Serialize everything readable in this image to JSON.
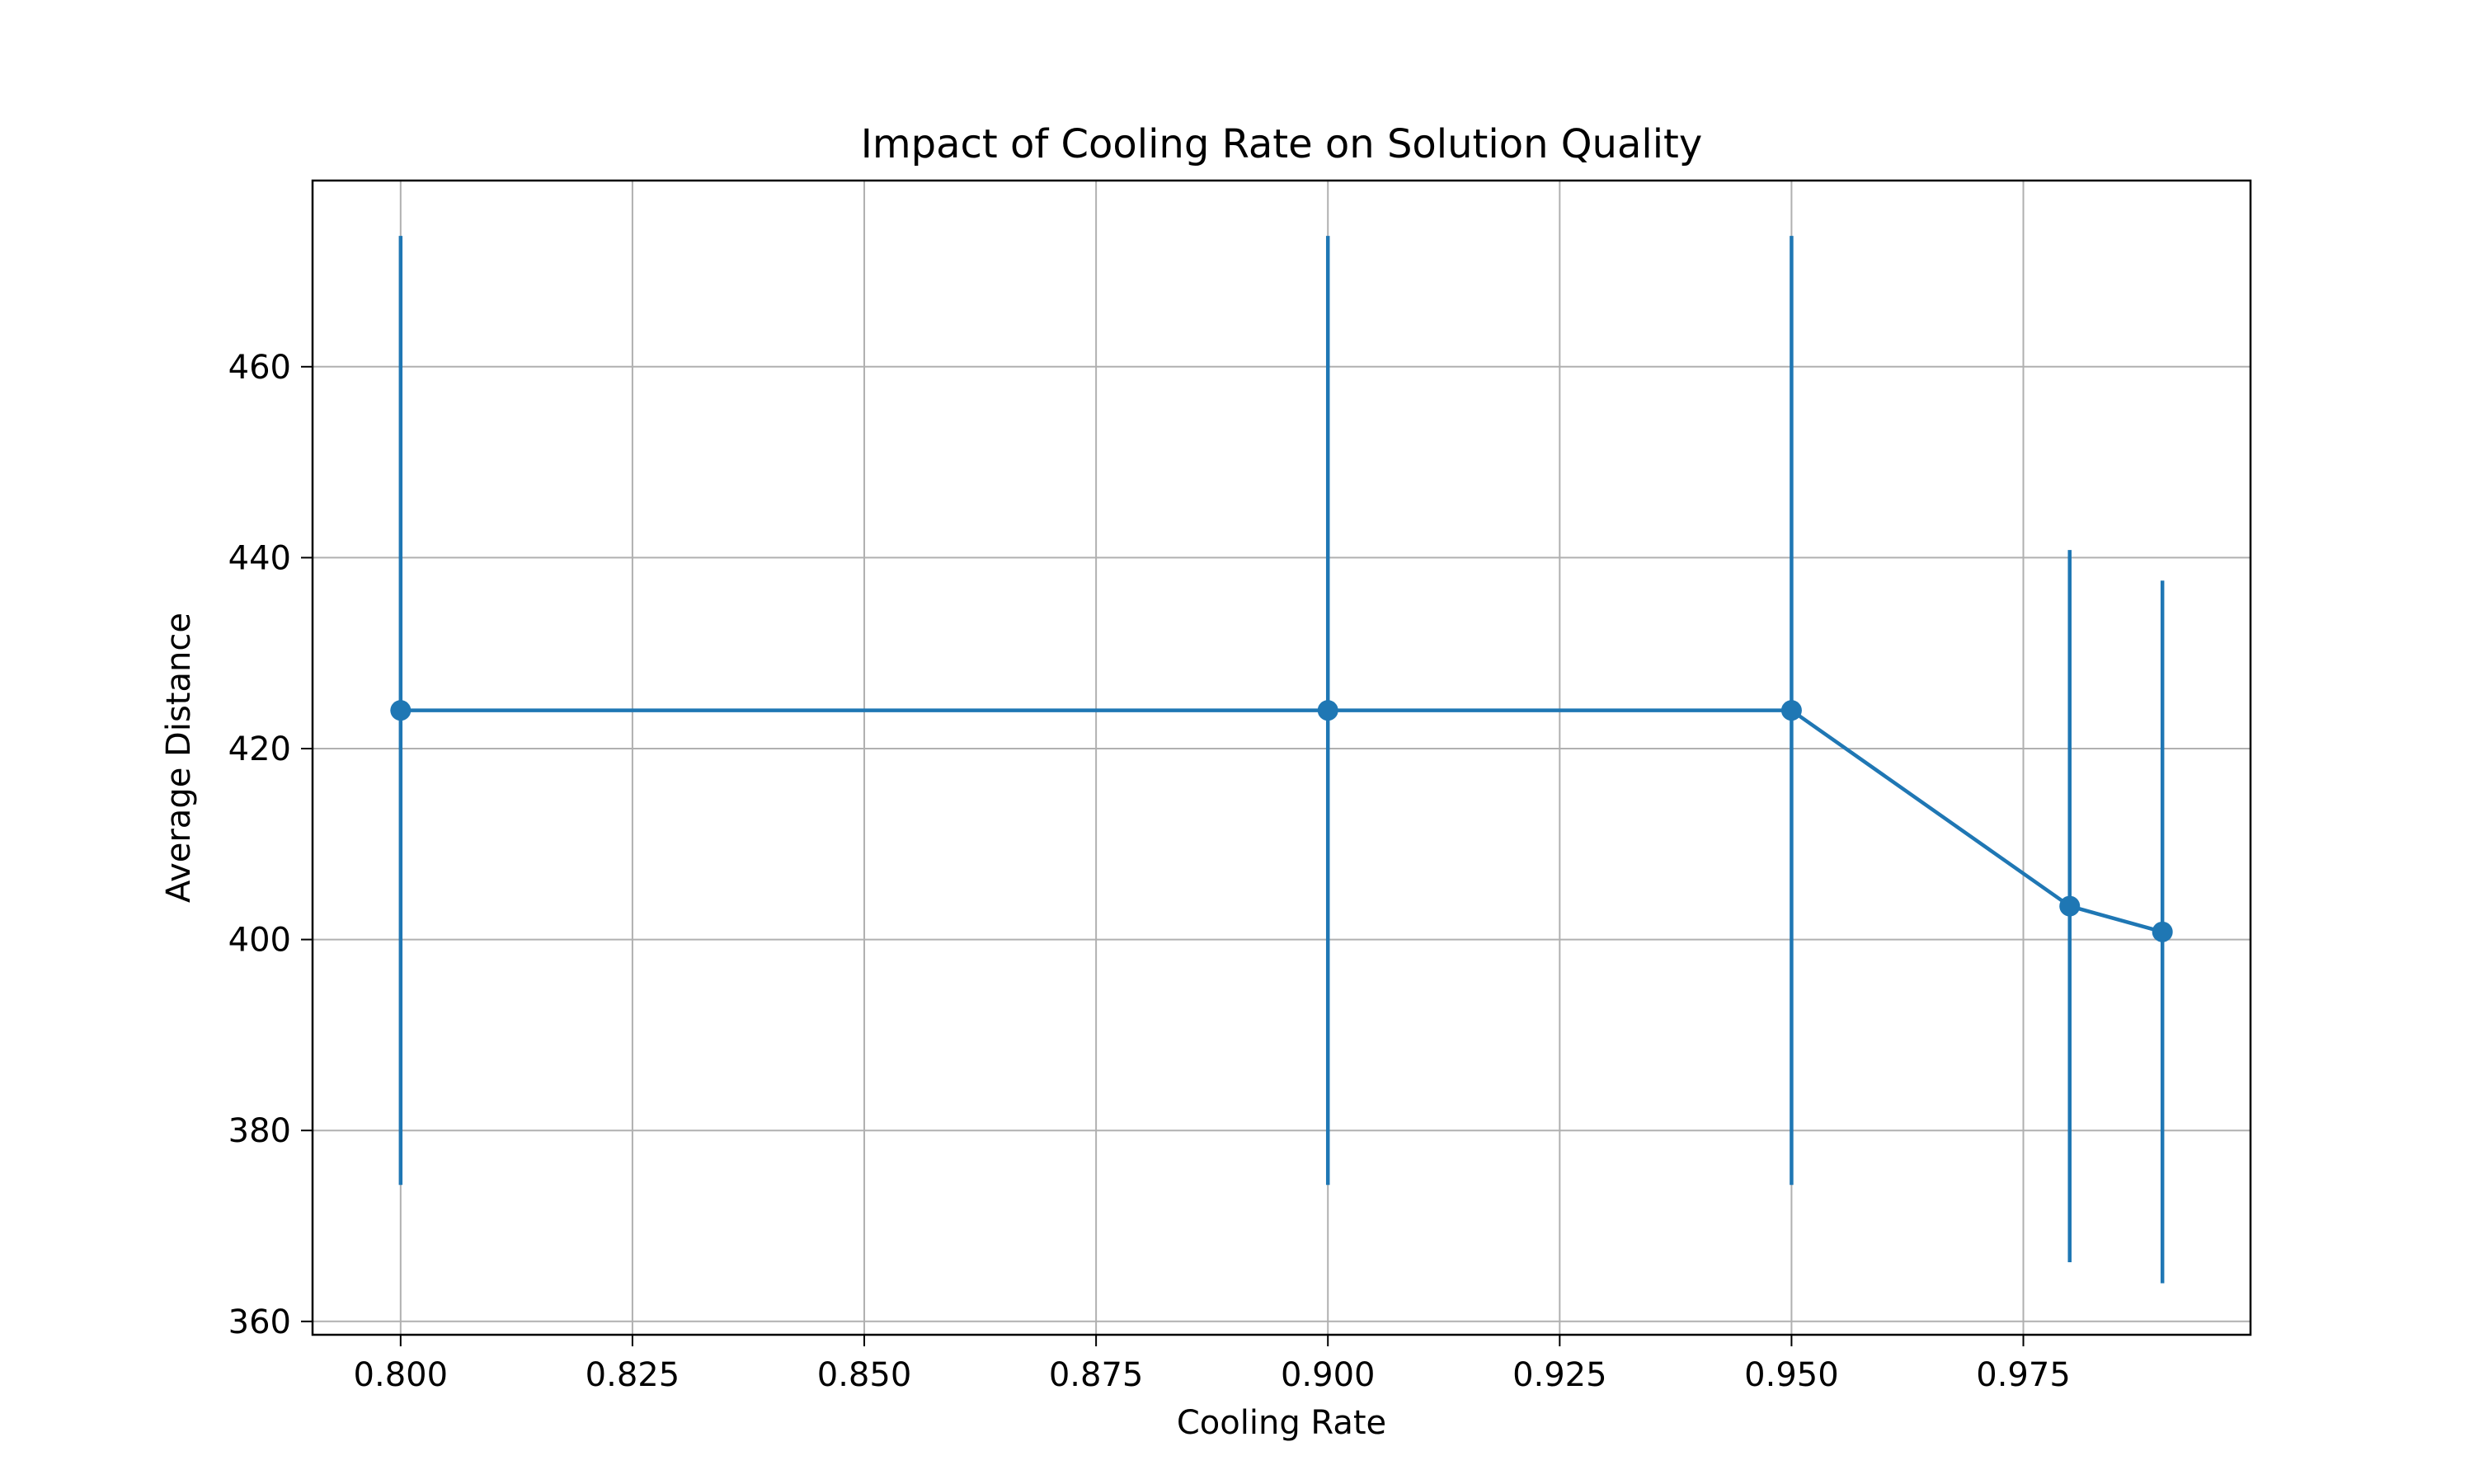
{
  "chart_data": {
    "type": "line",
    "title": "Impact of Cooling Rate on Solution Quality",
    "xlabel": "Cooling Rate",
    "ylabel": "Average Distance",
    "xlim": [
      0.7905,
      0.9995
    ],
    "ylim": [
      358.6,
      479.5
    ],
    "xticks": [
      0.8,
      0.825,
      0.85,
      0.875,
      0.9,
      0.925,
      0.95,
      0.975
    ],
    "xtick_labels": [
      "0.800",
      "0.825",
      "0.850",
      "0.875",
      "0.900",
      "0.925",
      "0.950",
      "0.975"
    ],
    "yticks": [
      360,
      380,
      400,
      420,
      440,
      460
    ],
    "ytick_labels": [
      "360",
      "380",
      "400",
      "420",
      "440",
      "460"
    ],
    "grid": true,
    "legend": null,
    "color": "#1f77b4",
    "series": [
      {
        "x": [
          0.8,
          0.9,
          0.95,
          0.98,
          0.99
        ],
        "y": [
          424.0,
          424.0,
          424.0,
          403.5,
          400.8
        ],
        "yerr": [
          49.7,
          49.7,
          49.7,
          37.3,
          36.8
        ]
      }
    ]
  }
}
